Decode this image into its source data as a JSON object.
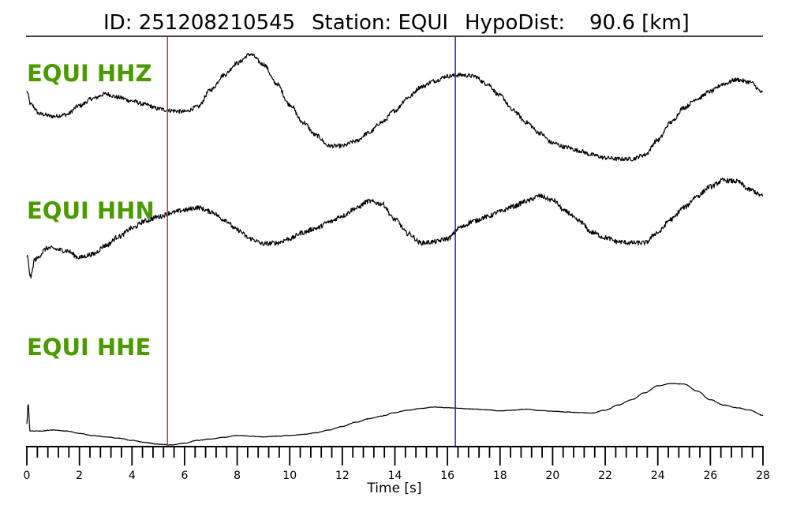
{
  "title": {
    "id": "ID: 251208210545",
    "station": "Station: EQUI",
    "hypodist": "HypoDist:",
    "hypodist_value": "90.6 [km]"
  },
  "colors": {
    "label": "#4a9a00",
    "p_pick": "#e03030",
    "s_pick": "#1a1aff",
    "trace": "#000000"
  },
  "chart_data": {
    "type": "line",
    "xlabel": "Time [s]",
    "xlim": [
      0,
      28
    ],
    "x_ticks_major": [
      0,
      2,
      4,
      6,
      8,
      10,
      12,
      14,
      16,
      18,
      20,
      22,
      24,
      26,
      28
    ],
    "x_tick_labels": [
      "0",
      "2",
      "4",
      "6",
      "8",
      "10",
      "12",
      "14",
      "16",
      "18",
      "20",
      "22",
      "24",
      "26",
      "28"
    ],
    "minor_tick_step": 0.4,
    "picks": [
      {
        "time": 5.35,
        "color": "#e03030"
      },
      {
        "time": 16.3,
        "color": "#1a1aff"
      }
    ],
    "ylim": [
      -1,
      1
    ],
    "series": [
      {
        "name": "EQUI HHZ",
        "noise": 0.035,
        "points": [
          [
            0,
            0.32
          ],
          [
            0.15,
            0.1
          ],
          [
            0.5,
            -0.06
          ],
          [
            1,
            -0.1
          ],
          [
            1.5,
            -0.07
          ],
          [
            2,
            0.08
          ],
          [
            2.5,
            0.2
          ],
          [
            3,
            0.28
          ],
          [
            3.5,
            0.22
          ],
          [
            4,
            0.16
          ],
          [
            4.5,
            0.1
          ],
          [
            5,
            0.03
          ],
          [
            5.4,
            0.0
          ],
          [
            6,
            -0.02
          ],
          [
            6.5,
            0.06
          ],
          [
            7,
            0.35
          ],
          [
            7.5,
            0.6
          ],
          [
            8,
            0.8
          ],
          [
            8.5,
            0.95
          ],
          [
            9,
            0.78
          ],
          [
            9.5,
            0.45
          ],
          [
            10,
            0.1
          ],
          [
            10.5,
            -0.2
          ],
          [
            11,
            -0.42
          ],
          [
            11.5,
            -0.6
          ],
          [
            12,
            -0.6
          ],
          [
            12.5,
            -0.52
          ],
          [
            13,
            -0.38
          ],
          [
            13.5,
            -0.2
          ],
          [
            14,
            0.0
          ],
          [
            14.5,
            0.22
          ],
          [
            15,
            0.4
          ],
          [
            15.5,
            0.5
          ],
          [
            16,
            0.58
          ],
          [
            16.5,
            0.6
          ],
          [
            17,
            0.58
          ],
          [
            17.5,
            0.45
          ],
          [
            18,
            0.25
          ],
          [
            18.5,
            0.0
          ],
          [
            19,
            -0.2
          ],
          [
            19.5,
            -0.38
          ],
          [
            20,
            -0.55
          ],
          [
            20.5,
            -0.62
          ],
          [
            21,
            -0.68
          ],
          [
            21.5,
            -0.75
          ],
          [
            22,
            -0.8
          ],
          [
            22.5,
            -0.82
          ],
          [
            23,
            -0.82
          ],
          [
            23.5,
            -0.75
          ],
          [
            24,
            -0.5
          ],
          [
            24.5,
            -0.2
          ],
          [
            25,
            0.05
          ],
          [
            25.5,
            0.2
          ],
          [
            26,
            0.32
          ],
          [
            26.5,
            0.45
          ],
          [
            27,
            0.52
          ],
          [
            27.5,
            0.48
          ],
          [
            28,
            0.3
          ]
        ]
      },
      {
        "name": "EQUI HHN",
        "noise": 0.045,
        "points": [
          [
            0,
            -0.55
          ],
          [
            0.15,
            -0.95
          ],
          [
            0.3,
            -0.62
          ],
          [
            0.8,
            -0.4
          ],
          [
            1.5,
            -0.45
          ],
          [
            2,
            -0.58
          ],
          [
            2.5,
            -0.52
          ],
          [
            3,
            -0.35
          ],
          [
            3.5,
            -0.18
          ],
          [
            4,
            -0.02
          ],
          [
            4.5,
            0.12
          ],
          [
            5,
            0.2
          ],
          [
            5.5,
            0.28
          ],
          [
            6,
            0.33
          ],
          [
            6.5,
            0.38
          ],
          [
            7,
            0.3
          ],
          [
            7.5,
            0.15
          ],
          [
            8,
            -0.05
          ],
          [
            8.5,
            -0.22
          ],
          [
            9,
            -0.32
          ],
          [
            9.5,
            -0.3
          ],
          [
            10,
            -0.22
          ],
          [
            10.5,
            -0.1
          ],
          [
            11,
            -0.02
          ],
          [
            11.5,
            0.1
          ],
          [
            12,
            0.22
          ],
          [
            12.5,
            0.36
          ],
          [
            13,
            0.5
          ],
          [
            13.5,
            0.45
          ],
          [
            14,
            0.15
          ],
          [
            14.5,
            -0.12
          ],
          [
            15,
            -0.3
          ],
          [
            15.5,
            -0.28
          ],
          [
            16,
            -0.22
          ],
          [
            16.5,
            0.0
          ],
          [
            17,
            0.12
          ],
          [
            17.5,
            0.2
          ],
          [
            18,
            0.3
          ],
          [
            18.5,
            0.4
          ],
          [
            19,
            0.5
          ],
          [
            19.5,
            0.6
          ],
          [
            20,
            0.52
          ],
          [
            20.5,
            0.3
          ],
          [
            21,
            0.12
          ],
          [
            21.5,
            -0.1
          ],
          [
            22,
            -0.2
          ],
          [
            22.5,
            -0.28
          ],
          [
            23,
            -0.3
          ],
          [
            23.5,
            -0.3
          ],
          [
            24,
            -0.1
          ],
          [
            24.5,
            0.15
          ],
          [
            25,
            0.38
          ],
          [
            25.5,
            0.6
          ],
          [
            26,
            0.78
          ],
          [
            26.5,
            0.9
          ],
          [
            27,
            0.88
          ],
          [
            27.5,
            0.72
          ],
          [
            28,
            0.6
          ]
        ]
      },
      {
        "name": "EQUI HHE",
        "noise": 0.008,
        "points": [
          [
            0,
            -0.35
          ],
          [
            0.05,
            0.25
          ],
          [
            0.12,
            -0.55
          ],
          [
            0.5,
            -0.55
          ],
          [
            1,
            -0.52
          ],
          [
            1.5,
            -0.55
          ],
          [
            2,
            -0.62
          ],
          [
            2.5,
            -0.68
          ],
          [
            3,
            -0.72
          ],
          [
            3.5,
            -0.76
          ],
          [
            4,
            -0.82
          ],
          [
            4.5,
            -0.88
          ],
          [
            5,
            -0.93
          ],
          [
            5.5,
            -0.95
          ],
          [
            6,
            -0.9
          ],
          [
            6.5,
            -0.82
          ],
          [
            7,
            -0.78
          ],
          [
            7.5,
            -0.73
          ],
          [
            8,
            -0.68
          ],
          [
            8.5,
            -0.7
          ],
          [
            9,
            -0.72
          ],
          [
            9.5,
            -0.7
          ],
          [
            10,
            -0.68
          ],
          [
            10.5,
            -0.65
          ],
          [
            11,
            -0.6
          ],
          [
            11.5,
            -0.52
          ],
          [
            12,
            -0.42
          ],
          [
            12.5,
            -0.3
          ],
          [
            13,
            -0.2
          ],
          [
            13.5,
            -0.12
          ],
          [
            14,
            -0.02
          ],
          [
            14.5,
            0.05
          ],
          [
            15,
            0.1
          ],
          [
            15.5,
            0.14
          ],
          [
            16,
            0.12
          ],
          [
            16.5,
            0.1
          ],
          [
            17,
            0.08
          ],
          [
            17.5,
            0.06
          ],
          [
            18,
            0.03
          ],
          [
            18.5,
            0.05
          ],
          [
            19,
            0.08
          ],
          [
            19.5,
            0.04
          ],
          [
            20,
            0.02
          ],
          [
            20.5,
            0.0
          ],
          [
            21,
            -0.02
          ],
          [
            21.5,
            -0.03
          ],
          [
            22,
            0.05
          ],
          [
            22.5,
            0.2
          ],
          [
            23,
            0.35
          ],
          [
            23.5,
            0.55
          ],
          [
            24,
            0.75
          ],
          [
            24.5,
            0.82
          ],
          [
            25,
            0.8
          ],
          [
            25.5,
            0.6
          ],
          [
            26,
            0.35
          ],
          [
            26.5,
            0.2
          ],
          [
            27,
            0.12
          ],
          [
            27.5,
            0.05
          ],
          [
            28,
            -0.1
          ]
        ]
      }
    ]
  }
}
